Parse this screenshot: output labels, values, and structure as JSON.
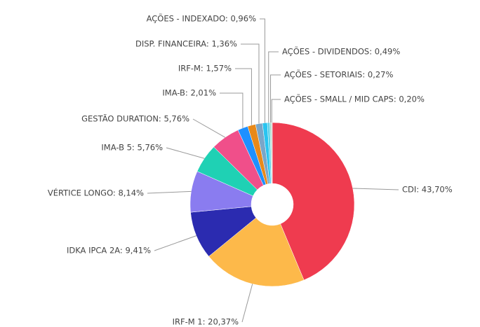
{
  "chart_data": {
    "type": "donut",
    "values": [
      43.7,
      20.37,
      9.41,
      8.14,
      5.76,
      5.76,
      2.01,
      1.57,
      1.36,
      0.96,
      0.49,
      0.27,
      0.2
    ],
    "value_labels": [
      "CDI: 43,70%",
      "IRF-M 1: 20,37%",
      "IDKA IPCA 2A: 9,41%",
      "VÉRTICE LONGO: 8,14%",
      "IMA-B 5: 5,76%",
      "GESTÃO DURATION: 5,76%",
      "IMA-B: 2,01%",
      "IRF-M: 1,57%",
      "DISP. FINANCEIRA: 1,36%",
      "AÇÕES - INDEXADO: 0,96%",
      "AÇÕES - DIVIDENDOS: 0,49%",
      "AÇÕES - SETORIAIS: 0,27%",
      "AÇÕES - SMALL / MID CAPS: 0,20%"
    ],
    "colors": [
      "#ef3b4f",
      "#fdb94a",
      "#2b2bb0",
      "#8a7cf0",
      "#1fd1b4",
      "#f04f8a",
      "#1e90ff",
      "#e8891a",
      "#7aa6c8",
      "#29c4f0",
      "#5ad0e8",
      "#9ad8c0",
      "#c8c8c8"
    ]
  }
}
